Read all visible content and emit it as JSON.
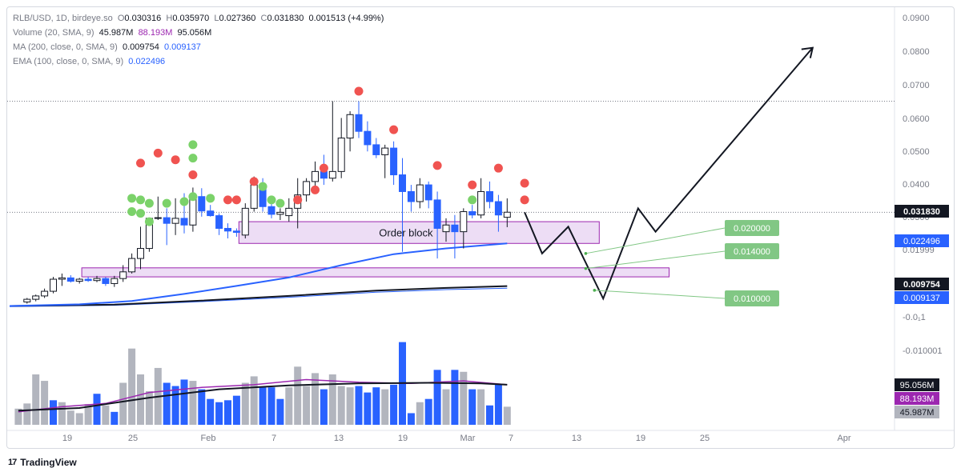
{
  "header": {
    "symbol": "RLB/USD, 1D, birdeye.so",
    "o_label": "O",
    "o": "0.030316",
    "h_label": "H",
    "h": "0.035970",
    "l_label": "L",
    "l": "0.027360",
    "c_label": "C",
    "c": "0.031830",
    "change": "0.001513 (+4.99%)",
    "volume_label": "Volume (20, SMA, 9)",
    "volume_values": [
      "45.987M",
      "88.193M",
      "95.056M"
    ],
    "ma_label": "MA (200, close, 0, SMA, 9)",
    "ma_values": [
      "0.009754",
      "0.009137"
    ],
    "ema_label": "EMA (100, close, 0, SMA, 9)",
    "ema_value": "0.022496"
  },
  "footer": {
    "brand": "TradingView",
    "logo_text": "17"
  },
  "colors": {
    "up": "#ffffff",
    "down": "#2962ff",
    "wick": "#2962ff",
    "vol_up": "#b2b5be",
    "vol_down": "#2962ff",
    "ema": "#2962ff",
    "ma": "#131722",
    "vol_sma": "#9c27b0",
    "sell_dot": "#f05350",
    "buy_dot": "#7bd26a",
    "order_block_fill": "#e8d4f2",
    "order_block_stroke": "#9c27b0",
    "target": "#81c784"
  },
  "chart_data": {
    "type": "candlestick",
    "title": "RLB/USD, 1D, birdeye.so",
    "xlabel": "",
    "ylabel": "",
    "y_range": [
      0.0035,
      0.092
    ],
    "price_axis_ticks": [
      "0.0900",
      "0.0800",
      "0.0700",
      "0.0600",
      "0.0500",
      "0.0400",
      "0.0300",
      "0.01999",
      "-0.0₁1",
      "-0.010001"
    ],
    "time_axis_labels": [
      "19",
      "25",
      "Feb",
      "7",
      "13",
      "19",
      "Mar",
      "7",
      "13",
      "19",
      "25",
      "Apr"
    ],
    "horizontal_reference_lines": [
      0.065,
      0.0318
    ],
    "price_tags": [
      {
        "label": "0.031830",
        "value": 0.03183,
        "style": "dark"
      },
      {
        "label": "0.022496",
        "value": 0.022496,
        "style": "ema"
      },
      {
        "label": "0.009754",
        "value": 0.009754,
        "style": "dark"
      },
      {
        "label": "0.009137",
        "value": 0.009137,
        "style": "ema"
      }
    ],
    "volume_tags": [
      {
        "label": "95.056M",
        "style": "dark"
      },
      {
        "label": "88.193M",
        "style": "purple"
      },
      {
        "label": "45.987M",
        "style": "grey"
      }
    ],
    "candles": [
      {
        "day": 14,
        "o": 0.005,
        "h": 0.0062,
        "l": 0.0045,
        "c": 0.0058
      },
      {
        "day": 15,
        "o": 0.0058,
        "h": 0.0072,
        "l": 0.0052,
        "c": 0.0068
      },
      {
        "day": 16,
        "o": 0.0068,
        "h": 0.009,
        "l": 0.0062,
        "c": 0.0082
      },
      {
        "day": 17,
        "o": 0.0082,
        "h": 0.0125,
        "l": 0.0076,
        "c": 0.0118
      },
      {
        "day": 18,
        "o": 0.0118,
        "h": 0.0135,
        "l": 0.0098,
        "c": 0.0122
      },
      {
        "day": 19,
        "o": 0.0122,
        "h": 0.013,
        "l": 0.0108,
        "c": 0.0112
      },
      {
        "day": 20,
        "o": 0.0112,
        "h": 0.0122,
        "l": 0.0105,
        "c": 0.0118
      },
      {
        "day": 21,
        "o": 0.0118,
        "h": 0.0125,
        "l": 0.011,
        "c": 0.0114
      },
      {
        "day": 22,
        "o": 0.0114,
        "h": 0.0128,
        "l": 0.0109,
        "c": 0.012
      },
      {
        "day": 23,
        "o": 0.012,
        "h": 0.0124,
        "l": 0.0098,
        "c": 0.0105
      },
      {
        "day": 24,
        "o": 0.0105,
        "h": 0.0128,
        "l": 0.0095,
        "c": 0.012
      },
      {
        "day": 25,
        "o": 0.012,
        "h": 0.016,
        "l": 0.011,
        "c": 0.014
      },
      {
        "day": 26,
        "o": 0.014,
        "h": 0.0195,
        "l": 0.0135,
        "c": 0.018
      },
      {
        "day": 27,
        "o": 0.018,
        "h": 0.0275,
        "l": 0.0148,
        "c": 0.021
      },
      {
        "day": 28,
        "o": 0.021,
        "h": 0.03,
        "l": 0.02,
        "c": 0.03
      },
      {
        "day": 29,
        "o": 0.03,
        "h": 0.0365,
        "l": 0.0295,
        "c": 0.0302
      },
      {
        "day": 30,
        "o": 0.0302,
        "h": 0.033,
        "l": 0.022,
        "c": 0.0285
      },
      {
        "day": 31,
        "o": 0.0285,
        "h": 0.036,
        "l": 0.025,
        "c": 0.03
      },
      {
        "day": 32,
        "o": 0.03,
        "h": 0.0375,
        "l": 0.0255,
        "c": 0.028
      },
      {
        "day": 33,
        "o": 0.028,
        "h": 0.0392,
        "l": 0.026,
        "c": 0.0365
      },
      {
        "day": 34,
        "o": 0.0365,
        "h": 0.039,
        "l": 0.0305,
        "c": 0.0322
      },
      {
        "day": 35,
        "o": 0.0322,
        "h": 0.034,
        "l": 0.0305,
        "c": 0.0308
      },
      {
        "day": 36,
        "o": 0.0308,
        "h": 0.0315,
        "l": 0.025,
        "c": 0.027
      },
      {
        "day": 37,
        "o": 0.027,
        "h": 0.0285,
        "l": 0.024,
        "c": 0.0262
      },
      {
        "day": 38,
        "o": 0.0262,
        "h": 0.027,
        "l": 0.0245,
        "c": 0.0258
      },
      {
        "day": 39,
        "o": 0.025,
        "h": 0.0345,
        "l": 0.024,
        "c": 0.033
      },
      {
        "day": 40,
        "o": 0.033,
        "h": 0.0425,
        "l": 0.032,
        "c": 0.04
      },
      {
        "day": 41,
        "o": 0.04,
        "h": 0.042,
        "l": 0.032,
        "c": 0.0335
      },
      {
        "day": 42,
        "o": 0.0335,
        "h": 0.0345,
        "l": 0.03,
        "c": 0.0312
      },
      {
        "day": 43,
        "o": 0.0312,
        "h": 0.033,
        "l": 0.0295,
        "c": 0.0318
      },
      {
        "day": 44,
        "o": 0.0308,
        "h": 0.036,
        "l": 0.029,
        "c": 0.033
      },
      {
        "day": 45,
        "o": 0.033,
        "h": 0.042,
        "l": 0.027,
        "c": 0.037
      },
      {
        "day": 46,
        "o": 0.037,
        "h": 0.042,
        "l": 0.035,
        "c": 0.041
      },
      {
        "day": 47,
        "o": 0.041,
        "h": 0.047,
        "l": 0.039,
        "c": 0.044
      },
      {
        "day": 48,
        "o": 0.044,
        "h": 0.049,
        "l": 0.04,
        "c": 0.042
      },
      {
        "day": 49,
        "o": 0.042,
        "h": 0.065,
        "l": 0.041,
        "c": 0.044
      },
      {
        "day": 50,
        "o": 0.044,
        "h": 0.06,
        "l": 0.042,
        "c": 0.054
      },
      {
        "day": 51,
        "o": 0.054,
        "h": 0.062,
        "l": 0.05,
        "c": 0.061
      },
      {
        "day": 52,
        "o": 0.061,
        "h": 0.065,
        "l": 0.054,
        "c": 0.056
      },
      {
        "day": 53,
        "o": 0.056,
        "h": 0.059,
        "l": 0.05,
        "c": 0.052
      },
      {
        "day": 54,
        "o": 0.052,
        "h": 0.054,
        "l": 0.048,
        "c": 0.049
      },
      {
        "day": 55,
        "o": 0.049,
        "h": 0.052,
        "l": 0.042,
        "c": 0.051
      },
      {
        "day": 56,
        "o": 0.051,
        "h": 0.053,
        "l": 0.04,
        "c": 0.043
      },
      {
        "day": 57,
        "o": 0.043,
        "h": 0.048,
        "l": 0.02,
        "c": 0.038
      },
      {
        "day": 58,
        "o": 0.038,
        "h": 0.04,
        "l": 0.032,
        "c": 0.035
      },
      {
        "day": 59,
        "o": 0.035,
        "h": 0.042,
        "l": 0.033,
        "c": 0.04
      },
      {
        "day": 60,
        "o": 0.04,
        "h": 0.041,
        "l": 0.033,
        "c": 0.0355
      },
      {
        "day": 61,
        "o": 0.0355,
        "h": 0.038,
        "l": 0.018,
        "c": 0.027
      },
      {
        "day": 62,
        "o": 0.026,
        "h": 0.03,
        "l": 0.023,
        "c": 0.028
      },
      {
        "day": 63,
        "o": 0.028,
        "h": 0.031,
        "l": 0.018,
        "c": 0.026
      },
      {
        "day": 64,
        "o": 0.026,
        "h": 0.033,
        "l": 0.021,
        "c": 0.032
      },
      {
        "day": 65,
        "o": 0.032,
        "h": 0.034,
        "l": 0.03,
        "c": 0.031
      },
      {
        "day": 66,
        "o": 0.031,
        "h": 0.042,
        "l": 0.03,
        "c": 0.038
      },
      {
        "day": 67,
        "o": 0.038,
        "h": 0.041,
        "l": 0.033,
        "c": 0.035
      },
      {
        "day": 68,
        "o": 0.035,
        "h": 0.037,
        "l": 0.026,
        "c": 0.031
      },
      {
        "day": 69,
        "o": 0.03032,
        "h": 0.03597,
        "l": 0.02736,
        "c": 0.03183
      }
    ],
    "volume": [
      {
        "day": 13,
        "v": 0.25,
        "up": true
      },
      {
        "day": 14,
        "v": 0.33,
        "up": true
      },
      {
        "day": 15,
        "v": 0.78,
        "up": true
      },
      {
        "day": 16,
        "v": 0.68,
        "up": true
      },
      {
        "day": 17,
        "v": 0.38,
        "up": false
      },
      {
        "day": 18,
        "v": 0.35,
        "up": true
      },
      {
        "day": 19,
        "v": 0.22,
        "up": true
      },
      {
        "day": 20,
        "v": 0.18,
        "up": true
      },
      {
        "day": 21,
        "v": 0.32,
        "up": true
      },
      {
        "day": 22,
        "v": 0.48,
        "up": false
      },
      {
        "day": 23,
        "v": 0.3,
        "up": true
      },
      {
        "day": 24,
        "v": 0.2,
        "up": false
      },
      {
        "day": 25,
        "v": 0.65,
        "up": true
      },
      {
        "day": 26,
        "v": 1.18,
        "up": true
      },
      {
        "day": 27,
        "v": 0.78,
        "up": true
      },
      {
        "day": 28,
        "v": 0.52,
        "up": true
      },
      {
        "day": 29,
        "v": 0.88,
        "up": true
      },
      {
        "day": 30,
        "v": 0.65,
        "up": false
      },
      {
        "day": 31,
        "v": 0.6,
        "up": false
      },
      {
        "day": 32,
        "v": 0.7,
        "up": false
      },
      {
        "day": 33,
        "v": 0.68,
        "up": true
      },
      {
        "day": 34,
        "v": 0.55,
        "up": false
      },
      {
        "day": 35,
        "v": 0.4,
        "up": false
      },
      {
        "day": 36,
        "v": 0.35,
        "up": false
      },
      {
        "day": 37,
        "v": 0.38,
        "up": false
      },
      {
        "day": 38,
        "v": 0.45,
        "up": false
      },
      {
        "day": 39,
        "v": 0.65,
        "up": true
      },
      {
        "day": 40,
        "v": 0.75,
        "up": true
      },
      {
        "day": 41,
        "v": 0.58,
        "up": false
      },
      {
        "day": 42,
        "v": 0.58,
        "up": false
      },
      {
        "day": 43,
        "v": 0.4,
        "up": false
      },
      {
        "day": 44,
        "v": 0.58,
        "up": true
      },
      {
        "day": 45,
        "v": 0.9,
        "up": true
      },
      {
        "day": 46,
        "v": 0.6,
        "up": true
      },
      {
        "day": 47,
        "v": 0.8,
        "up": true
      },
      {
        "day": 48,
        "v": 0.55,
        "up": false
      },
      {
        "day": 49,
        "v": 0.78,
        "up": true
      },
      {
        "day": 50,
        "v": 0.6,
        "up": true
      },
      {
        "day": 51,
        "v": 0.58,
        "up": true
      },
      {
        "day": 52,
        "v": 0.6,
        "up": false
      },
      {
        "day": 53,
        "v": 0.5,
        "up": false
      },
      {
        "day": 54,
        "v": 0.58,
        "up": false
      },
      {
        "day": 55,
        "v": 0.55,
        "up": true
      },
      {
        "day": 56,
        "v": 0.62,
        "up": false
      },
      {
        "day": 57,
        "v": 1.28,
        "up": false
      },
      {
        "day": 58,
        "v": 0.18,
        "up": false
      },
      {
        "day": 59,
        "v": 0.35,
        "up": true
      },
      {
        "day": 60,
        "v": 0.4,
        "up": false
      },
      {
        "day": 61,
        "v": 0.85,
        "up": false
      },
      {
        "day": 62,
        "v": 0.55,
        "up": true
      },
      {
        "day": 63,
        "v": 0.85,
        "up": false
      },
      {
        "day": 64,
        "v": 0.82,
        "up": true
      },
      {
        "day": 65,
        "v": 0.55,
        "up": false
      },
      {
        "day": 66,
        "v": 0.55,
        "up": true
      },
      {
        "day": 67,
        "v": 0.3,
        "up": false
      },
      {
        "day": 68,
        "v": 0.62,
        "up": false
      },
      {
        "day": 69,
        "v": 0.28,
        "up": true
      }
    ],
    "ema_100": [
      {
        "day": 12,
        "v": 0.0038
      },
      {
        "day": 20,
        "v": 0.0043
      },
      {
        "day": 26,
        "v": 0.0053
      },
      {
        "day": 32,
        "v": 0.0074
      },
      {
        "day": 38,
        "v": 0.0098
      },
      {
        "day": 44,
        "v": 0.0123
      },
      {
        "day": 50,
        "v": 0.016
      },
      {
        "day": 56,
        "v": 0.0193
      },
      {
        "day": 62,
        "v": 0.021
      },
      {
        "day": 69,
        "v": 0.022496
      }
    ],
    "ma_200": [
      {
        "day": 12,
        "v": 0.0038
      },
      {
        "day": 24,
        "v": 0.0042
      },
      {
        "day": 34,
        "v": 0.0054
      },
      {
        "day": 44,
        "v": 0.0068
      },
      {
        "day": 54,
        "v": 0.0084
      },
      {
        "day": 62,
        "v": 0.0092
      },
      {
        "day": 69,
        "v": 0.009754
      }
    ],
    "ma_200_sma": [
      {
        "day": 12,
        "v": 0.0036
      },
      {
        "day": 24,
        "v": 0.004
      },
      {
        "day": 34,
        "v": 0.0051
      },
      {
        "day": 44,
        "v": 0.0064
      },
      {
        "day": 54,
        "v": 0.0079
      },
      {
        "day": 62,
        "v": 0.0087
      },
      {
        "day": 69,
        "v": 0.009137
      }
    ],
    "volume_sma": [
      {
        "day": 13,
        "v": 0.2
      },
      {
        "day": 18,
        "v": 0.28
      },
      {
        "day": 23,
        "v": 0.33
      },
      {
        "day": 28,
        "v": 0.5
      },
      {
        "day": 34,
        "v": 0.58
      },
      {
        "day": 40,
        "v": 0.62
      },
      {
        "day": 46,
        "v": 0.7
      },
      {
        "day": 52,
        "v": 0.66
      },
      {
        "day": 58,
        "v": 0.64
      },
      {
        "day": 64,
        "v": 0.68
      },
      {
        "day": 69,
        "v": 0.62
      }
    ],
    "volume_sma_slow": [
      {
        "day": 13,
        "v": 0.22
      },
      {
        "day": 20,
        "v": 0.26
      },
      {
        "day": 28,
        "v": 0.42
      },
      {
        "day": 36,
        "v": 0.55
      },
      {
        "day": 44,
        "v": 0.61
      },
      {
        "day": 52,
        "v": 0.64
      },
      {
        "day": 60,
        "v": 0.65
      },
      {
        "day": 66,
        "v": 0.64
      },
      {
        "day": 69,
        "v": 0.62
      }
    ],
    "sell_signals": [
      {
        "day": 27,
        "v": 0.0465
      },
      {
        "day": 29,
        "v": 0.0495
      },
      {
        "day": 31,
        "v": 0.0475
      },
      {
        "day": 33,
        "v": 0.043
      },
      {
        "day": 37,
        "v": 0.0355
      },
      {
        "day": 38,
        "v": 0.0355
      },
      {
        "day": 40,
        "v": 0.041
      },
      {
        "day": 45,
        "v": 0.0355
      },
      {
        "day": 47,
        "v": 0.0385
      },
      {
        "day": 48,
        "v": 0.045
      },
      {
        "day": 52,
        "v": 0.068
      },
      {
        "day": 56,
        "v": 0.0565
      },
      {
        "day": 61,
        "v": 0.0458
      },
      {
        "day": 65,
        "v": 0.04
      },
      {
        "day": 68,
        "v": 0.045
      },
      {
        "day": 71,
        "v": 0.0405
      },
      {
        "day": 71,
        "v": 0.0355
      }
    ],
    "buy_signals": [
      {
        "day": 26,
        "v": 0.036
      },
      {
        "day": 26,
        "v": 0.032
      },
      {
        "day": 27,
        "v": 0.0355
      },
      {
        "day": 27,
        "v": 0.0315
      },
      {
        "day": 28,
        "v": 0.0345
      },
      {
        "day": 28,
        "v": 0.029
      },
      {
        "day": 30,
        "v": 0.0345
      },
      {
        "day": 32,
        "v": 0.035
      },
      {
        "day": 33,
        "v": 0.0365
      },
      {
        "day": 33,
        "v": 0.052
      },
      {
        "day": 33,
        "v": 0.048
      },
      {
        "day": 35,
        "v": 0.036
      },
      {
        "day": 41,
        "v": 0.0395
      },
      {
        "day": 42,
        "v": 0.0355
      },
      {
        "day": 43,
        "v": 0.0345
      },
      {
        "day": 65,
        "v": 0.0355
      }
    ],
    "order_blocks": [
      {
        "label": "Order block",
        "day_from": 39,
        "day_to": 79,
        "low": 0.0225,
        "high": 0.029
      },
      {
        "label": "",
        "day_from": 21,
        "day_to": 87,
        "low": 0.0125,
        "high": 0.0152
      }
    ],
    "projection_path": [
      {
        "day": 71,
        "v": 0.0318
      },
      {
        "day": 73,
        "v": 0.0195
      },
      {
        "day": 76,
        "v": 0.0275
      },
      {
        "day": 80,
        "v": 0.006
      },
      {
        "day": 84,
        "v": 0.033
      },
      {
        "day": 86,
        "v": 0.026
      },
      {
        "day": 104,
        "v": 0.081
      }
    ],
    "targets": [
      {
        "label": "0.020000",
        "value": 0.02,
        "from_day": 78,
        "from_v": 0.0195
      },
      {
        "label": "0.014000",
        "value": 0.014,
        "from_day": 78,
        "from_v": 0.015
      },
      {
        "label": "0.010000",
        "value": 0.01,
        "from_day": 79,
        "from_v": 0.0085
      }
    ]
  }
}
